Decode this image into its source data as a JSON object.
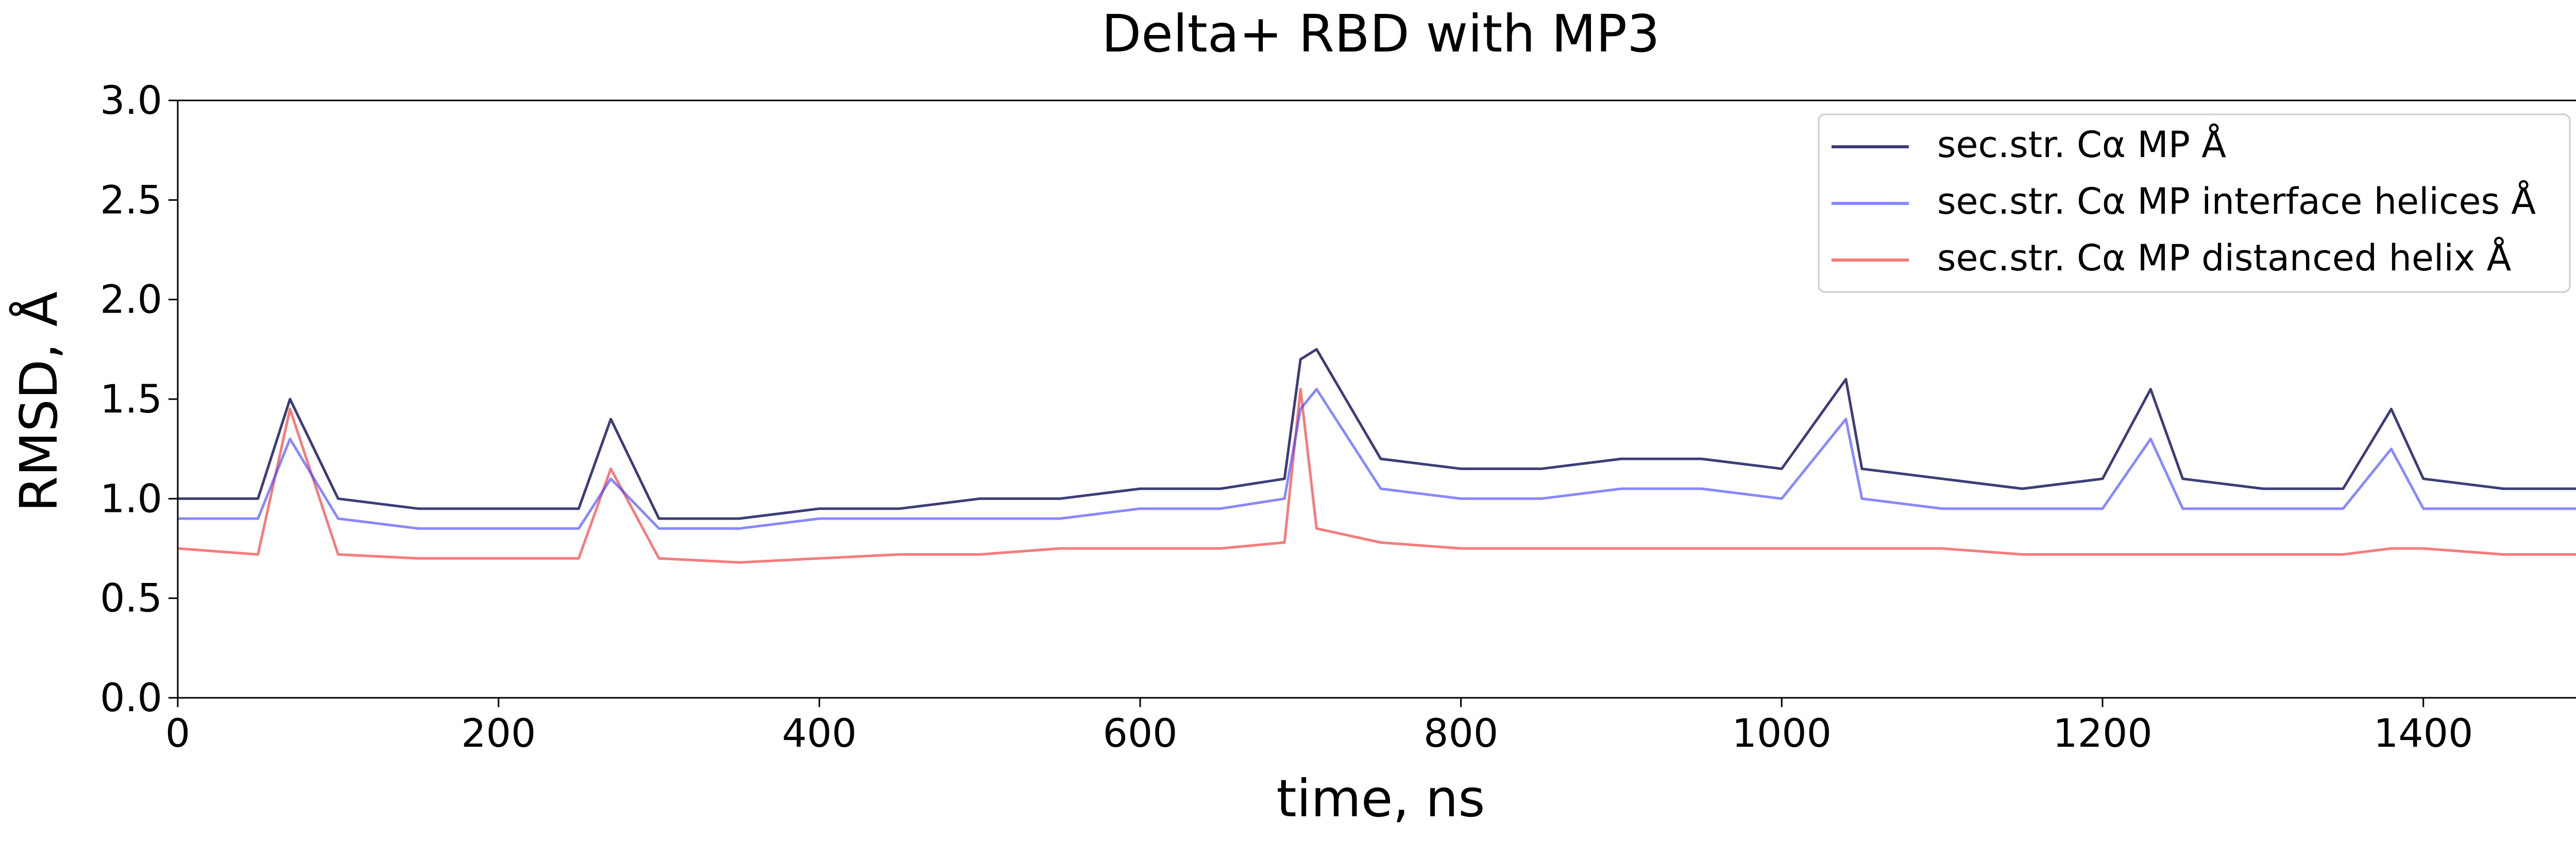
{
  "chart_data": {
    "type": "line",
    "title": "Delta+ RBD with MP3",
    "xlabel": "time, ns",
    "ylabel": "RMSD, Å",
    "xlim": [
      0,
      1500
    ],
    "ylim": [
      0.0,
      3.0
    ],
    "xticks": [
      0,
      200,
      400,
      600,
      800,
      1000,
      1200,
      1400
    ],
    "yticks": [
      0.0,
      0.5,
      1.0,
      1.5,
      2.0,
      2.5,
      3.0
    ],
    "xtick_labels": [
      "0",
      "200",
      "400",
      "600",
      "800",
      "1000",
      "1200",
      "1400"
    ],
    "ytick_labels": [
      "0.0",
      "0.5",
      "1.0",
      "1.5",
      "2.0",
      "2.5",
      "3.0"
    ],
    "grid": false,
    "legend_position": "top-right",
    "series": [
      {
        "name": "sec.str. Cα MP Å",
        "color": "#1a1a5e",
        "opacity": 0.85,
        "x": [
          0,
          50,
          70,
          100,
          150,
          200,
          250,
          270,
          300,
          350,
          400,
          450,
          500,
          550,
          600,
          650,
          690,
          700,
          710,
          750,
          800,
          850,
          900,
          950,
          1000,
          1040,
          1050,
          1100,
          1150,
          1200,
          1230,
          1250,
          1300,
          1350,
          1380,
          1400,
          1450,
          1500
        ],
        "y": [
          1.0,
          1.0,
          1.5,
          1.0,
          0.95,
          0.95,
          0.95,
          1.4,
          0.9,
          0.9,
          0.95,
          0.95,
          1.0,
          1.0,
          1.05,
          1.05,
          1.1,
          1.7,
          1.75,
          1.2,
          1.15,
          1.15,
          1.2,
          1.2,
          1.15,
          1.6,
          1.15,
          1.1,
          1.05,
          1.1,
          1.55,
          1.1,
          1.05,
          1.05,
          1.45,
          1.1,
          1.05,
          1.05
        ]
      },
      {
        "name": "sec.str. Cα MP interface helices Å",
        "color": "#3838ff",
        "opacity": 0.6,
        "x": [
          0,
          50,
          70,
          100,
          150,
          200,
          250,
          270,
          300,
          350,
          400,
          450,
          500,
          550,
          600,
          650,
          690,
          700,
          710,
          750,
          800,
          850,
          900,
          950,
          1000,
          1040,
          1050,
          1100,
          1150,
          1200,
          1230,
          1250,
          1300,
          1350,
          1380,
          1400,
          1450,
          1500
        ],
        "y": [
          0.9,
          0.9,
          1.3,
          0.9,
          0.85,
          0.85,
          0.85,
          1.1,
          0.85,
          0.85,
          0.9,
          0.9,
          0.9,
          0.9,
          0.95,
          0.95,
          1.0,
          1.45,
          1.55,
          1.05,
          1.0,
          1.0,
          1.05,
          1.05,
          1.0,
          1.4,
          1.0,
          0.95,
          0.95,
          0.95,
          1.3,
          0.95,
          0.95,
          0.95,
          1.25,
          0.95,
          0.95,
          0.95
        ]
      },
      {
        "name": "sec.str. Cα MP distanced helix Å",
        "color": "#f05050",
        "opacity": 0.75,
        "x": [
          0,
          50,
          70,
          100,
          150,
          200,
          250,
          270,
          300,
          350,
          400,
          450,
          500,
          550,
          600,
          650,
          690,
          700,
          710,
          750,
          800,
          850,
          900,
          950,
          1000,
          1040,
          1050,
          1100,
          1150,
          1200,
          1230,
          1250,
          1300,
          1350,
          1380,
          1400,
          1450,
          1500
        ],
        "y": [
          0.75,
          0.72,
          1.45,
          0.72,
          0.7,
          0.7,
          0.7,
          1.15,
          0.7,
          0.68,
          0.7,
          0.72,
          0.72,
          0.75,
          0.75,
          0.75,
          0.78,
          1.55,
          0.85,
          0.78,
          0.75,
          0.75,
          0.75,
          0.75,
          0.75,
          0.75,
          0.75,
          0.75,
          0.72,
          0.72,
          0.72,
          0.72,
          0.72,
          0.72,
          0.75,
          0.75,
          0.72,
          0.72
        ]
      }
    ]
  }
}
